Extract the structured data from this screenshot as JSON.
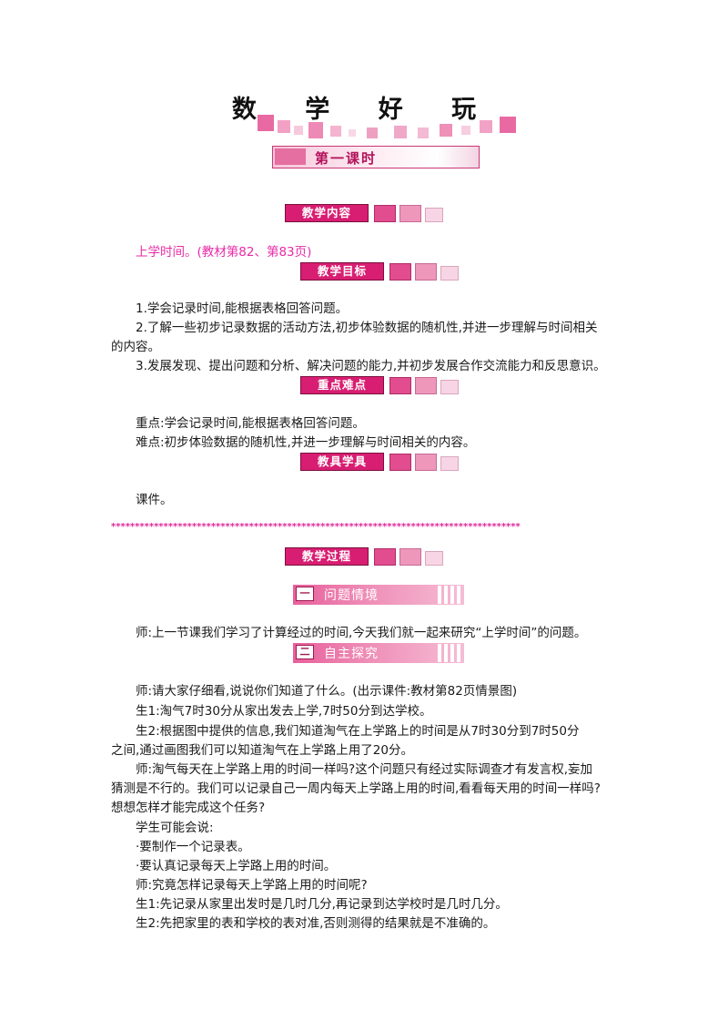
{
  "title": "数 学 好 玩",
  "lesson_label": "第一课时",
  "sections": {
    "content": "教学内容",
    "goals": "教学目标",
    "key_points": "重点难点",
    "tools": "教具学具",
    "process": "教学过程"
  },
  "content_text": "上学时间。(教材第82、第83页)",
  "goals": [
    "1.学会记录时间,能根据表格回答问题。",
    "2.了解一些初步记录数据的活动方法,初步体验数据的随机性,并进一步理解与时间相关",
    "的内容。",
    "3.发展发现、提出问题和分析、解决问题的能力,并初步发展合作交流能力和反思意识。"
  ],
  "key_points": [
    "重点:学会记录时间,能根据表格回答问题。",
    "难点:初步体验数据的随机性,并进一步理解与时间相关的内容。"
  ],
  "tools_text": "课件。",
  "separator": "**************************************************************************************",
  "sub1": {
    "num": "一",
    "label": "问题情境"
  },
  "sub1_text": "师:上一节课我们学习了计算经过的时间,今天我们就一起来研究“上学时间”的问题。",
  "sub2": {
    "num": "二",
    "label": "自主探究"
  },
  "sub2_lines": [
    "师:请大家仔细看,说说你们知道了什么。(出示课件:教材第82页情景图)",
    "生1:淘气7时30分从家出发去上学,7时50分到达学校。",
    "生2:根据图中提供的信息,我们知道淘气在上学路上的时间是从7时30分到7时50分",
    "之间,通过画图我们可以知道淘气在上学路上用了20分。",
    "师:淘气每天在上学路上用的时间一样吗?这个问题只有经过实际调查才有发言权,妄加",
    "猜测是不行的。我们可以记录自己一周内每天上学路上用的时间,看看每天用的时间一样吗?",
    "想想怎样才能完成这个任务?",
    "学生可能会说:",
    "·要制作一个记录表。",
    "·要认真记录每天上学路上用的时间。",
    "师:究竟怎样记录每天上学路上用的时间呢?",
    "生1:先记录从家里出发时是几时几分,再记录到达学校时是几时几分。",
    "生2:先把家里的表和学校的表对准,否则测得的结果就是不准确的。"
  ]
}
